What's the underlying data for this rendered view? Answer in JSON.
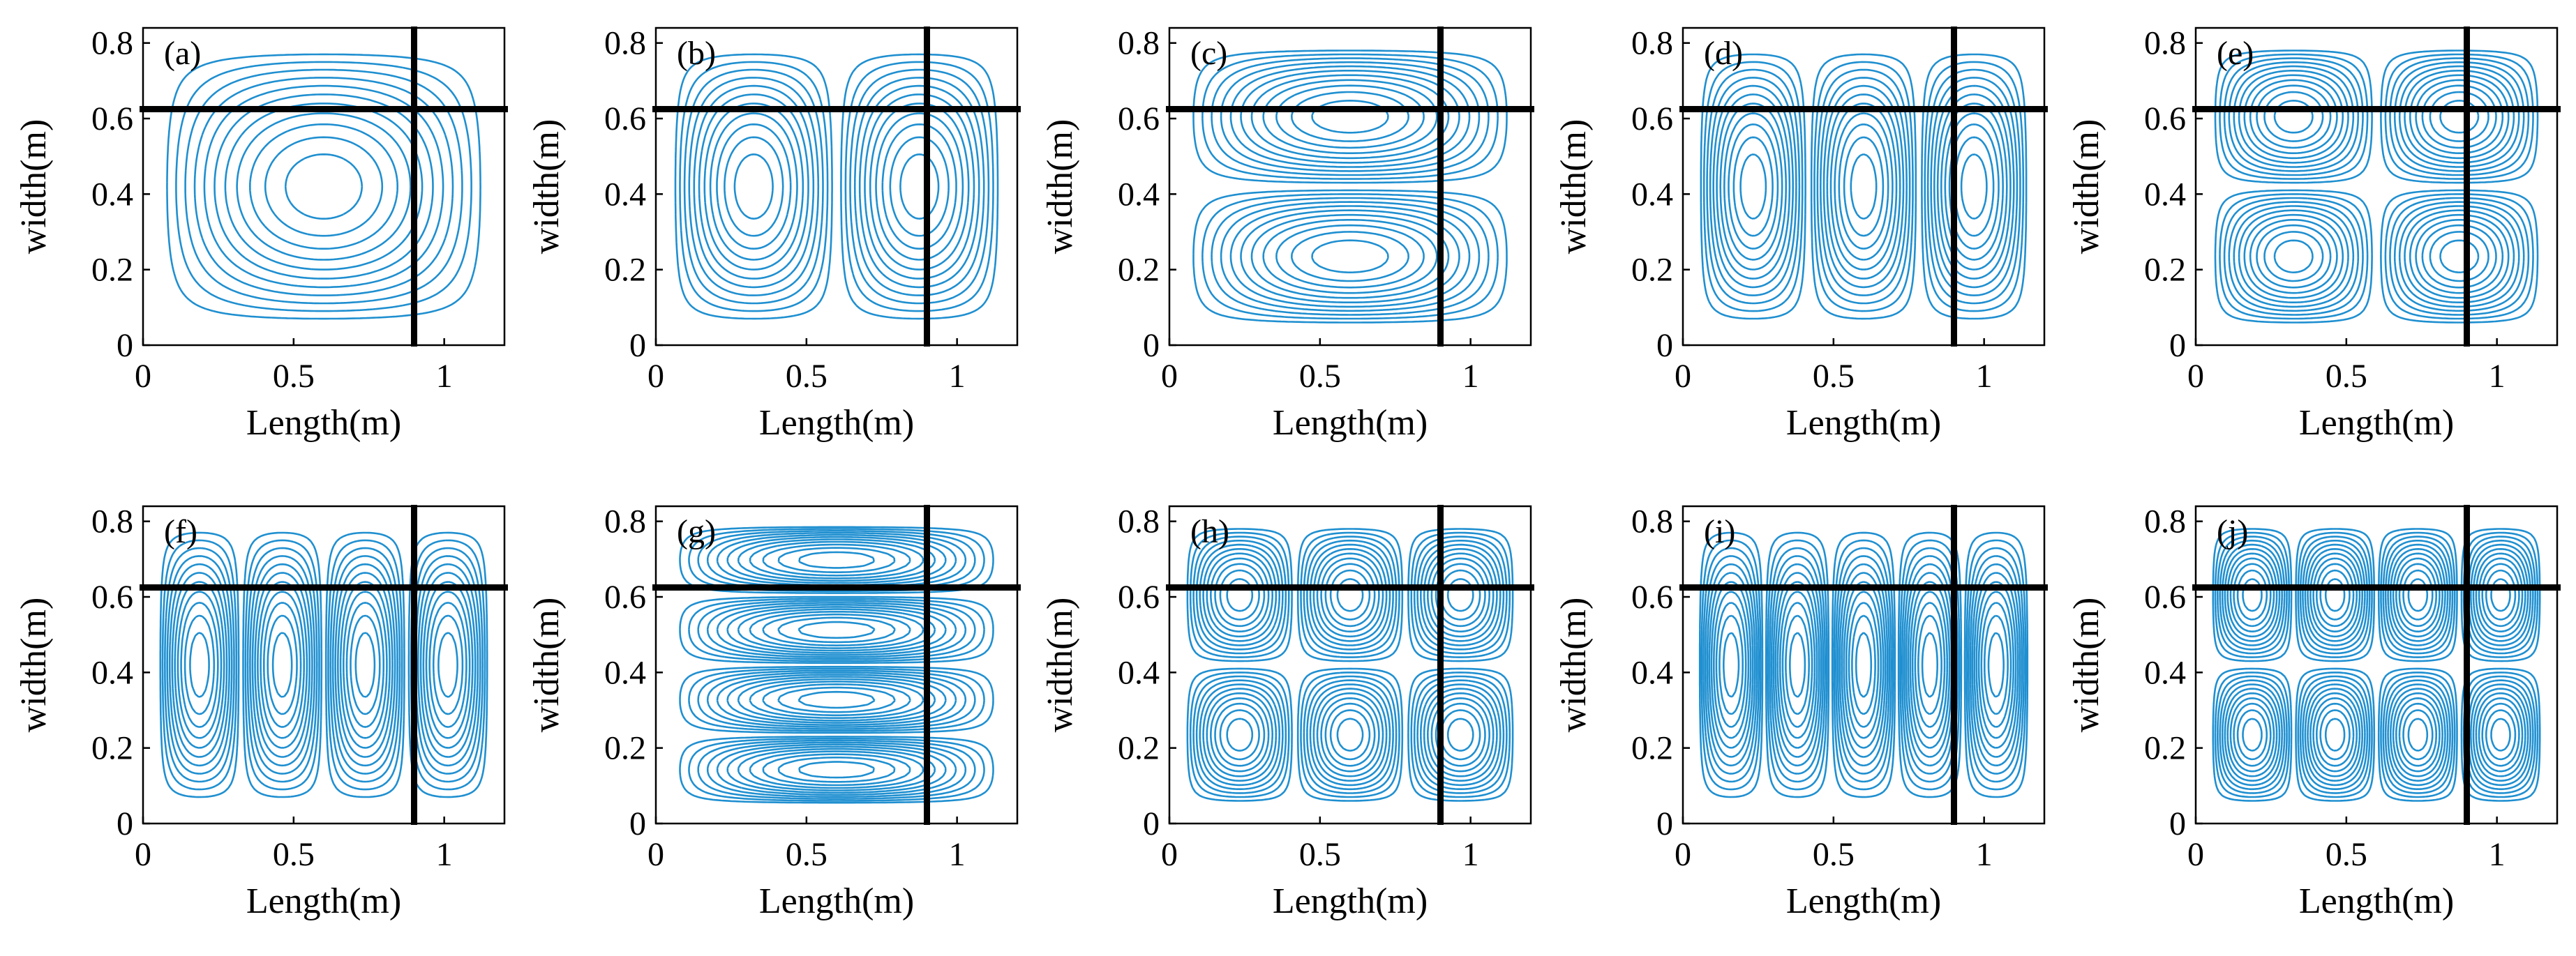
{
  "figure": {
    "contour_color": "#1f8fd0",
    "boundary_color": "#000000",
    "background_color": "#ffffff"
  },
  "chart_data": [
    {
      "type": "contour",
      "label": "(a)",
      "xlabel": "Length(m)",
      "ylabel": "width(m)",
      "xlim": [
        0,
        1.2
      ],
      "ylim": [
        0,
        0.84
      ],
      "xticks": [
        0,
        0.5,
        1
      ],
      "xtick_labels": [
        "0",
        "0.5",
        "1"
      ],
      "yticks": [
        0,
        0.2,
        0.4,
        0.6,
        0.8
      ],
      "ytick_labels": [
        "0",
        "0.2",
        "0.4",
        "0.6",
        "0.8"
      ],
      "domain": {
        "x": [
          0.05,
          1.15
        ],
        "y": [
          0.05,
          0.79
        ]
      },
      "mode": {
        "m": 1,
        "n": 1
      },
      "boundary_lines": {
        "vertical_x": 0.9,
        "horizontal_y": 0.625
      }
    },
    {
      "type": "contour",
      "label": "(b)",
      "xlabel": "Length(m)",
      "ylabel": "width(m)",
      "xlim": [
        0,
        1.2
      ],
      "ylim": [
        0,
        0.84
      ],
      "xticks": [
        0,
        0.5,
        1
      ],
      "xtick_labels": [
        "0",
        "0.5",
        "1"
      ],
      "yticks": [
        0,
        0.2,
        0.4,
        0.6,
        0.8
      ],
      "ytick_labels": [
        "0",
        "0.2",
        "0.4",
        "0.6",
        "0.8"
      ],
      "domain": {
        "x": [
          0.05,
          1.15
        ],
        "y": [
          0.05,
          0.79
        ]
      },
      "mode": {
        "m": 2,
        "n": 1
      },
      "boundary_lines": {
        "vertical_x": 0.9,
        "horizontal_y": 0.625
      }
    },
    {
      "type": "contour",
      "label": "(c)",
      "xlabel": "Length(m)",
      "ylabel": "width(m)",
      "xlim": [
        0,
        1.2
      ],
      "ylim": [
        0,
        0.84
      ],
      "xticks": [
        0,
        0.5,
        1
      ],
      "xtick_labels": [
        "0",
        "0.5",
        "1"
      ],
      "yticks": [
        0,
        0.2,
        0.4,
        0.6,
        0.8
      ],
      "ytick_labels": [
        "0",
        "0.2",
        "0.4",
        "0.6",
        "0.8"
      ],
      "domain": {
        "x": [
          0.05,
          1.15
        ],
        "y": [
          0.05,
          0.79
        ]
      },
      "mode": {
        "m": 1,
        "n": 2
      },
      "boundary_lines": {
        "vertical_x": 0.9,
        "horizontal_y": 0.625
      }
    },
    {
      "type": "contour",
      "label": "(d)",
      "xlabel": "Length(m)",
      "ylabel": "width(m)",
      "xlim": [
        0,
        1.2
      ],
      "ylim": [
        0,
        0.84
      ],
      "xticks": [
        0,
        0.5,
        1
      ],
      "xtick_labels": [
        "0",
        "0.5",
        "1"
      ],
      "yticks": [
        0,
        0.2,
        0.4,
        0.6,
        0.8
      ],
      "ytick_labels": [
        "0",
        "0.2",
        "0.4",
        "0.6",
        "0.8"
      ],
      "domain": {
        "x": [
          0.05,
          1.15
        ],
        "y": [
          0.05,
          0.79
        ]
      },
      "mode": {
        "m": 3,
        "n": 1
      },
      "boundary_lines": {
        "vertical_x": 0.9,
        "horizontal_y": 0.625
      }
    },
    {
      "type": "contour",
      "label": "(e)",
      "xlabel": "Length(m)",
      "ylabel": "width(m)",
      "xlim": [
        0,
        1.2
      ],
      "ylim": [
        0,
        0.84
      ],
      "xticks": [
        0,
        0.5,
        1
      ],
      "xtick_labels": [
        "0",
        "0.5",
        "1"
      ],
      "yticks": [
        0,
        0.2,
        0.4,
        0.6,
        0.8
      ],
      "ytick_labels": [
        "0",
        "0.2",
        "0.4",
        "0.6",
        "0.8"
      ],
      "domain": {
        "x": [
          0.05,
          1.15
        ],
        "y": [
          0.05,
          0.79
        ]
      },
      "mode": {
        "m": 2,
        "n": 2
      },
      "boundary_lines": {
        "vertical_x": 0.9,
        "horizontal_y": 0.625
      }
    },
    {
      "type": "contour",
      "label": "(f)",
      "xlabel": "Length(m)",
      "ylabel": "width(m)",
      "xlim": [
        0,
        1.2
      ],
      "ylim": [
        0,
        0.84
      ],
      "xticks": [
        0,
        0.5,
        1
      ],
      "xtick_labels": [
        "0",
        "0.5",
        "1"
      ],
      "yticks": [
        0,
        0.2,
        0.4,
        0.6,
        0.8
      ],
      "ytick_labels": [
        "0",
        "0.2",
        "0.4",
        "0.6",
        "0.8"
      ],
      "domain": {
        "x": [
          0.05,
          1.15
        ],
        "y": [
          0.05,
          0.79
        ]
      },
      "mode": {
        "m": 4,
        "n": 1
      },
      "boundary_lines": {
        "vertical_x": 0.9,
        "horizontal_y": 0.625
      }
    },
    {
      "type": "contour",
      "label": "(g)",
      "xlabel": "Length(m)",
      "ylabel": "width(m)",
      "xlim": [
        0,
        1.2
      ],
      "ylim": [
        0,
        0.84
      ],
      "xticks": [
        0,
        0.5,
        1
      ],
      "xtick_labels": [
        "0",
        "0.5",
        "1"
      ],
      "yticks": [
        0,
        0.2,
        0.4,
        0.6,
        0.8
      ],
      "ytick_labels": [
        "0",
        "0.2",
        "0.4",
        "0.6",
        "0.8"
      ],
      "domain": {
        "x": [
          0.05,
          1.15
        ],
        "y": [
          0.05,
          0.79
        ]
      },
      "mode": {
        "m": 1,
        "n": 4
      },
      "boundary_lines": {
        "vertical_x": 0.9,
        "horizontal_y": 0.625
      }
    },
    {
      "type": "contour",
      "label": "(h)",
      "xlabel": "Length(m)",
      "ylabel": "width(m)",
      "xlim": [
        0,
        1.2
      ],
      "ylim": [
        0,
        0.84
      ],
      "xticks": [
        0,
        0.5,
        1
      ],
      "xtick_labels": [
        "0",
        "0.5",
        "1"
      ],
      "yticks": [
        0,
        0.2,
        0.4,
        0.6,
        0.8
      ],
      "ytick_labels": [
        "0",
        "0.2",
        "0.4",
        "0.6",
        "0.8"
      ],
      "domain": {
        "x": [
          0.05,
          1.15
        ],
        "y": [
          0.05,
          0.79
        ]
      },
      "mode": {
        "m": 3,
        "n": 2
      },
      "boundary_lines": {
        "vertical_x": 0.9,
        "horizontal_y": 0.625
      }
    },
    {
      "type": "contour",
      "label": "(i)",
      "xlabel": "Length(m)",
      "ylabel": "width(m)",
      "xlim": [
        0,
        1.2
      ],
      "ylim": [
        0,
        0.84
      ],
      "xticks": [
        0,
        0.5,
        1
      ],
      "xtick_labels": [
        "0",
        "0.5",
        "1"
      ],
      "yticks": [
        0,
        0.2,
        0.4,
        0.6,
        0.8
      ],
      "ytick_labels": [
        "0",
        "0.2",
        "0.4",
        "0.6",
        "0.8"
      ],
      "domain": {
        "x": [
          0.05,
          1.15
        ],
        "y": [
          0.05,
          0.79
        ]
      },
      "mode": {
        "m": 5,
        "n": 1
      },
      "boundary_lines": {
        "vertical_x": 0.9,
        "horizontal_y": 0.625
      }
    },
    {
      "type": "contour",
      "label": "(j)",
      "xlabel": "Length(m)",
      "ylabel": "width(m)",
      "xlim": [
        0,
        1.2
      ],
      "ylim": [
        0,
        0.84
      ],
      "xticks": [
        0,
        0.5,
        1
      ],
      "xtick_labels": [
        "0",
        "0.5",
        "1"
      ],
      "yticks": [
        0,
        0.2,
        0.4,
        0.6,
        0.8
      ],
      "ytick_labels": [
        "0",
        "0.2",
        "0.4",
        "0.6",
        "0.8"
      ],
      "domain": {
        "x": [
          0.05,
          1.15
        ],
        "y": [
          0.05,
          0.79
        ]
      },
      "mode": {
        "m": 4,
        "n": 2
      },
      "boundary_lines": {
        "vertical_x": 0.9,
        "horizontal_y": 0.625
      }
    }
  ]
}
